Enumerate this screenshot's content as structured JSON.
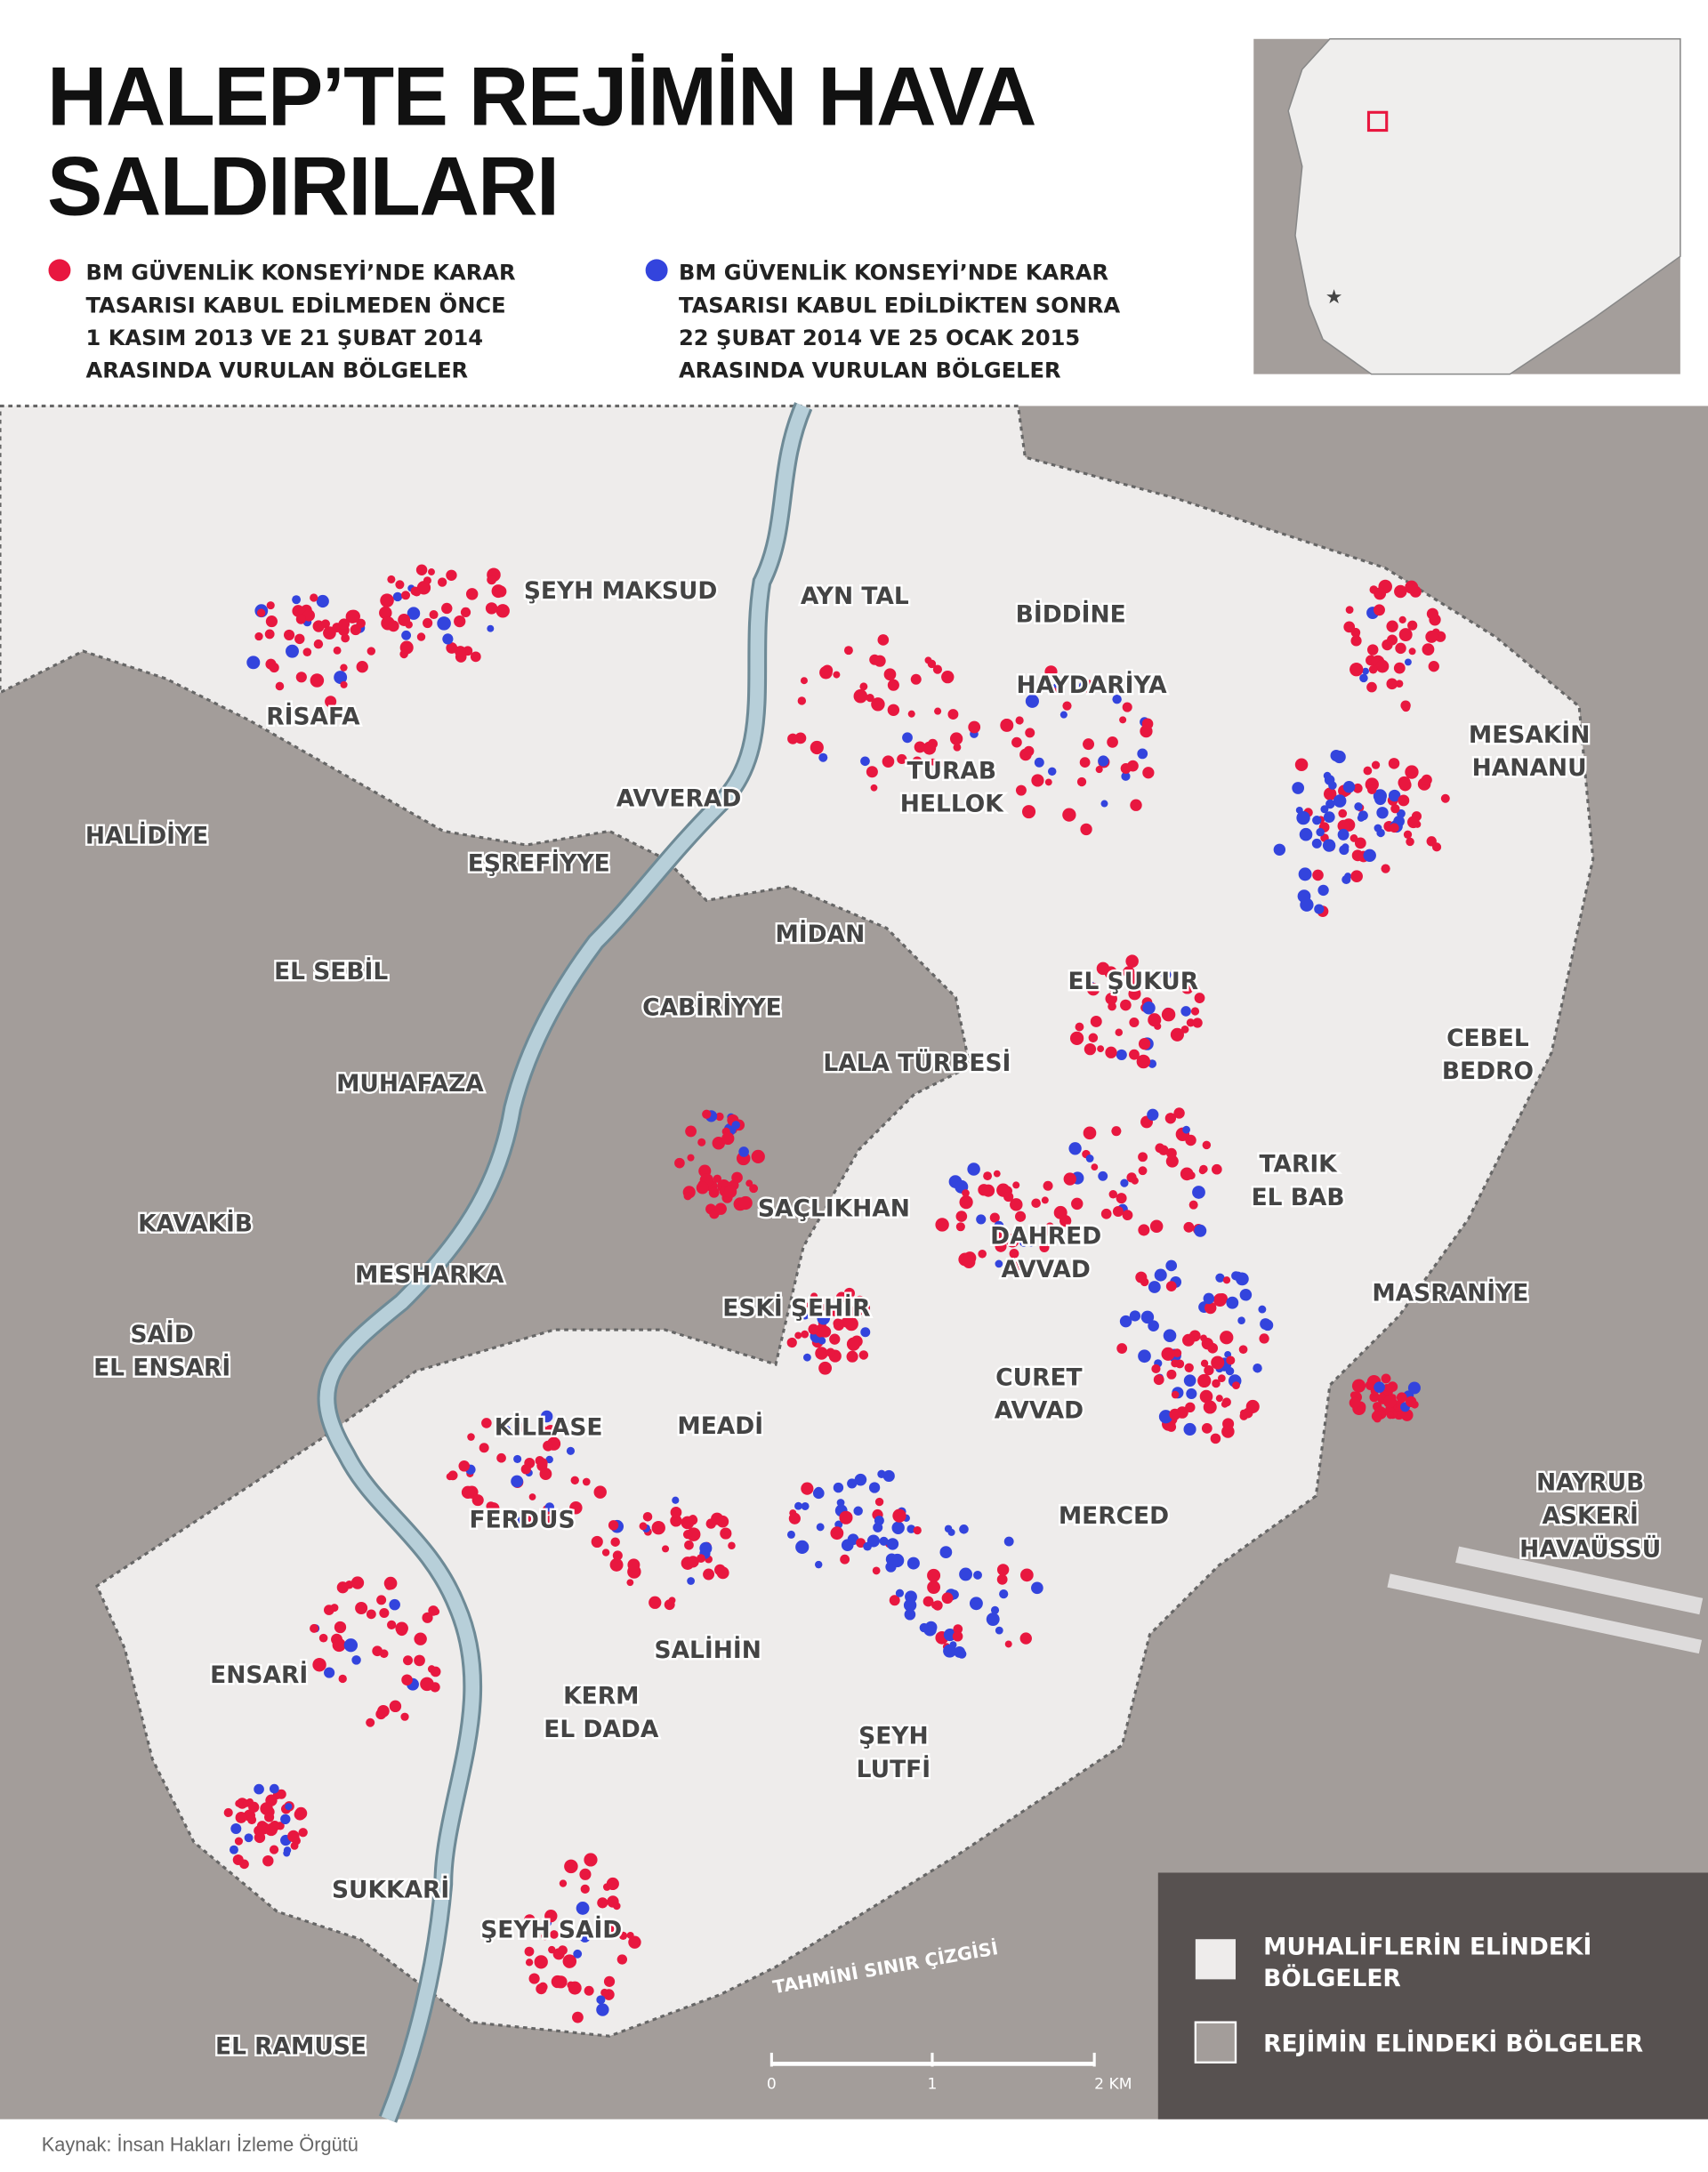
{
  "header": {
    "title": [
      "HALEP’TE REJİMİN HAVA",
      "SALDIRILARI"
    ]
  },
  "legend": {
    "red": [
      "BM GÜVENLİK KONSEYİ’NDE KARAR",
      "TASARISI KABUL EDİLMEDEN ÖNCE",
      "1 KASIM 2013 VE 21 ŞUBAT 2014",
      "ARASINDA VURULAN BÖLGELER"
    ],
    "blue": [
      "BM GÜVENLİK KONSEYİ’NDE KARAR",
      "TASARISI KABUL EDİLDİKTEN SONRA",
      "22 ŞUBAT 2014 VE 25 OCAK 2015",
      "ARASINDA VURULAN BÖLGELER"
    ]
  },
  "districts": [
    [
      "ŞEYH MAKSUD"
    ],
    [
      "AYN TAL"
    ],
    [
      "BİDDİNE"
    ],
    [
      "HAYDARİYA"
    ],
    [
      "RİSAFA"
    ],
    [
      "TURAB",
      "HELLOK"
    ],
    [
      "MESAKİN",
      "HANANU"
    ],
    [
      "AVVERAD"
    ],
    [
      "HALİDİYE"
    ],
    [
      "EŞREFİYYE"
    ],
    [
      "MİDAN"
    ],
    [
      "EL SEBİL"
    ],
    [
      "EL ŞUKUR"
    ],
    [
      "CABİRİYYE"
    ],
    [
      "CEBEL",
      "BEDRO"
    ],
    [
      "LALA TÜRBESİ"
    ],
    [
      "MUHAFAZA"
    ],
    [
      "TARIK",
      "EL BAB"
    ],
    [
      "SAÇLIKHAN"
    ],
    [
      "KAVAKİB"
    ],
    [
      "DAHRED",
      "AVVAD"
    ],
    [
      "MESHARKA"
    ],
    [
      "ESKİ ŞEHİR"
    ],
    [
      "MASRANİYE"
    ],
    [
      "SAİD",
      "EL ENSARİ"
    ],
    [
      "CURET",
      "AVVAD"
    ],
    [
      "KİLLASE"
    ],
    [
      "MEADİ"
    ],
    [
      "NAYRUB",
      "ASKERİ",
      "HAVAÜSSÜ"
    ],
    [
      "MERCED"
    ],
    [
      "FERDUS"
    ],
    [
      "ENSARİ"
    ],
    [
      "SALİHİN"
    ],
    [
      "KERM",
      "EL DADA"
    ],
    [
      "ŞEYH",
      "LUTFİ"
    ],
    [
      "SUKKARİ"
    ],
    [
      "ŞEYH SAİD"
    ],
    [
      "EL RAMUSE"
    ]
  ],
  "boundary_label": "TAHMİNİ SINIR ÇİZGİSİ",
  "scale": [
    "0",
    "1",
    "2 KM"
  ],
  "map_legend": {
    "rebel": [
      "MUHALİFLERİN ELİNDEKİ",
      "BÖLGELER"
    ],
    "regime": "REJİMİN ELİNDEKİ BÖLGELER"
  },
  "source": "Kaynak: İnsan Hakları İzleme Örgütü"
}
